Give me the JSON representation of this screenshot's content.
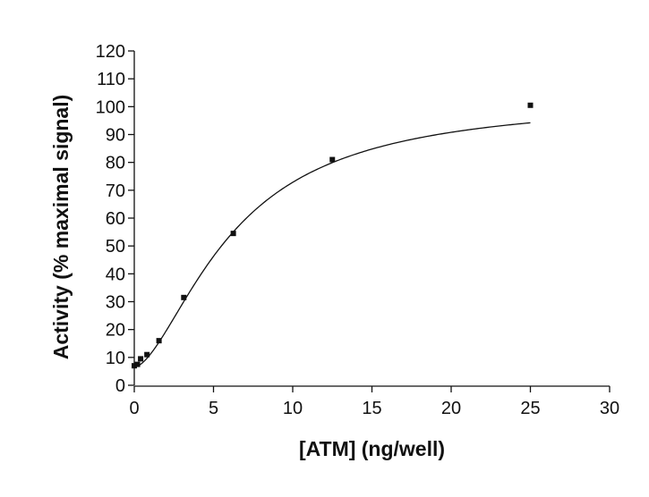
{
  "chart_data": {
    "type": "scatter",
    "xlabel": "[ATM] (ng/well)",
    "ylabel": "Activity (% maximal signal)",
    "xlim": [
      0,
      30
    ],
    "ylim": [
      0,
      120
    ],
    "x_ticks": [
      0,
      5,
      10,
      15,
      20,
      25,
      30
    ],
    "y_ticks": [
      0,
      10,
      20,
      30,
      40,
      50,
      60,
      70,
      80,
      90,
      100,
      110,
      120
    ],
    "grid": false,
    "series": [
      {
        "points": [
          {
            "x": 0,
            "y": 7
          },
          {
            "x": 0.2,
            "y": 7.5
          },
          {
            "x": 0.4,
            "y": 9.5
          },
          {
            "x": 0.8,
            "y": 11
          },
          {
            "x": 1.56,
            "y": 16
          },
          {
            "x": 3.125,
            "y": 31.5
          },
          {
            "x": 6.25,
            "y": 54.5
          },
          {
            "x": 12.5,
            "y": 81
          },
          {
            "x": 25,
            "y": 100.5
          }
        ],
        "fit_curve": {
          "model": "hill",
          "bottom": 6.5,
          "top": 103,
          "ec50": 6.2,
          "hill": 1.65,
          "x_range": [
            0,
            25
          ]
        }
      }
    ]
  }
}
